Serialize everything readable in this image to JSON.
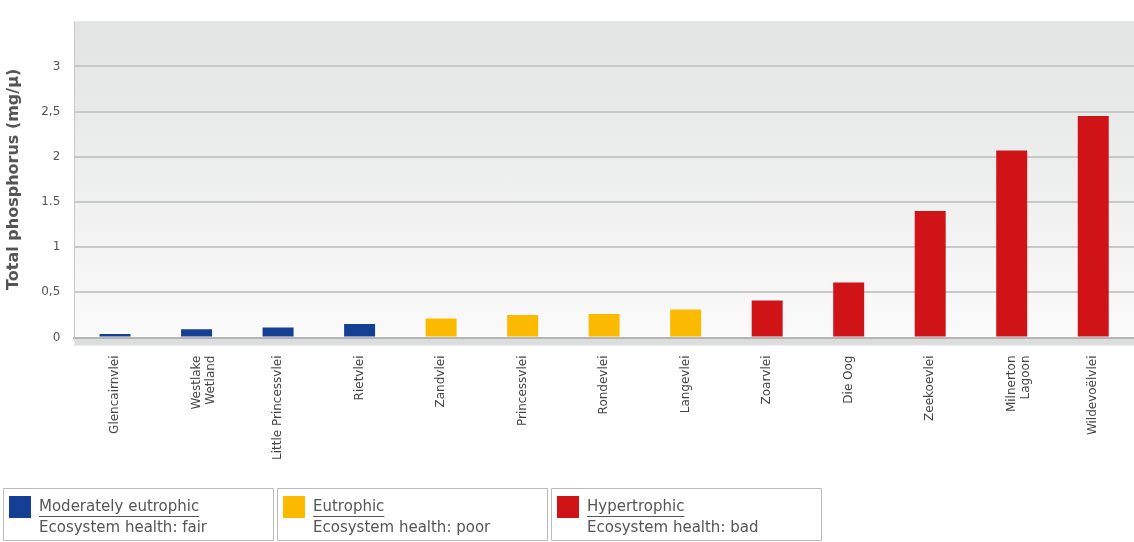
{
  "chart_data": {
    "type": "bar",
    "ylabel": "Total phosphorus (mg/µ)",
    "categories": [
      "Glencairnvlei",
      "Westlake\nWetland",
      "Little Princessvlei",
      "Rietvlei",
      "Zandvlei",
      "Princessvlei",
      "Rondevlei",
      "Langevlei",
      "Zoarvlei",
      "Die Oog",
      "Zeekoevlei",
      "Milnerton\nLagoon",
      "Wildevoëlvlei"
    ],
    "series": [
      {
        "name": "Moderately eutrophic",
        "color": "#143f94",
        "values": [
          0.04,
          0.09,
          0.11,
          0.15,
          null,
          null,
          null,
          null,
          null,
          null,
          null,
          null,
          null
        ]
      },
      {
        "name": "Eutrophic",
        "color": "#fbb900",
        "values": [
          null,
          null,
          null,
          null,
          0.21,
          0.25,
          0.26,
          0.31,
          null,
          null,
          null,
          null,
          null
        ]
      },
      {
        "name": "Hypertrophic",
        "color": "#cf1317",
        "values": [
          null,
          null,
          null,
          null,
          null,
          null,
          null,
          null,
          0.41,
          0.61,
          1.4,
          2.07,
          2.45
        ]
      }
    ],
    "ylim": [
      0,
      3.5
    ],
    "yticks": [
      0,
      {
        "value": 0.5,
        "label": "0,5"
      },
      1,
      {
        "value": 1.5,
        "label": "1.5"
      },
      2,
      {
        "value": 2.5,
        "label": "2,5"
      },
      3
    ],
    "annotations": [
      "Ecosystem health: fair",
      "Ecosystem health: poor",
      "Ecosystem health: bad"
    ],
    "grid": "y",
    "legend": "bottom"
  }
}
